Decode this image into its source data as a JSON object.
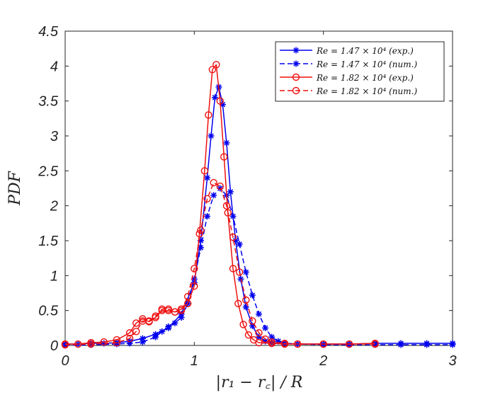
{
  "chart_data": {
    "type": "line",
    "title": "",
    "xlabel": "|r₁ − r꜀| / R",
    "ylabel": "PDF",
    "xlim": [
      0,
      3
    ],
    "ylim": [
      0,
      4.5
    ],
    "xticks": [
      0,
      1,
      2,
      3
    ],
    "xtick_labels": [
      "0",
      "1",
      "2",
      "3"
    ],
    "yticks": [
      0,
      0.5,
      1,
      1.5,
      2,
      2.5,
      3,
      3.5,
      4,
      4.5
    ],
    "ytick_labels": [
      "0",
      "0.5",
      "1",
      "1.5",
      "2",
      "2.5",
      "3",
      "3.5",
      "4",
      "4.5"
    ],
    "grid": false,
    "legend_position": "top-right",
    "series": [
      {
        "name": "Re = 1.47 × 10⁴ (exp.)",
        "color": "#0000ee",
        "linestyle": "solid",
        "marker": "asterisk",
        "x": [
          0.0,
          0.1,
          0.2,
          0.3,
          0.4,
          0.5,
          0.6,
          0.7,
          0.8,
          0.9,
          1.0,
          1.05,
          1.1,
          1.13,
          1.16,
          1.19,
          1.22,
          1.25,
          1.28,
          1.32,
          1.36,
          1.4,
          1.45,
          1.5,
          1.55,
          1.6,
          1.7,
          1.8,
          2.0,
          2.2,
          2.4,
          2.6,
          2.8,
          3.0
        ],
        "y": [
          0.02,
          0.02,
          0.03,
          0.03,
          0.04,
          0.06,
          0.1,
          0.16,
          0.25,
          0.45,
          0.9,
          1.5,
          2.4,
          3.0,
          3.55,
          3.7,
          3.45,
          2.9,
          2.2,
          1.5,
          0.95,
          0.55,
          0.28,
          0.12,
          0.06,
          0.04,
          0.03,
          0.02,
          0.02,
          0.02,
          0.03,
          0.03,
          0.03,
          0.03
        ]
      },
      {
        "name": "Re = 1.47 × 10⁴ (num.)",
        "color": "#0000ee",
        "linestyle": "dashed",
        "marker": "asterisk",
        "x": [
          0.0,
          0.2,
          0.4,
          0.5,
          0.6,
          0.7,
          0.75,
          0.8,
          0.85,
          0.9,
          0.95,
          1.0,
          1.05,
          1.1,
          1.15,
          1.2,
          1.25,
          1.3,
          1.35,
          1.4,
          1.45,
          1.5,
          1.55,
          1.6,
          1.65,
          1.7,
          1.8,
          2.0,
          2.2,
          2.4,
          2.6,
          2.8,
          3.0
        ],
        "y": [
          0.0,
          0.01,
          0.02,
          0.03,
          0.05,
          0.12,
          0.2,
          0.27,
          0.32,
          0.4,
          0.6,
          0.95,
          1.4,
          1.85,
          2.15,
          2.25,
          2.15,
          1.85,
          1.45,
          1.05,
          0.72,
          0.45,
          0.25,
          0.12,
          0.06,
          0.03,
          0.02,
          0.01,
          0.01,
          0.01,
          0.01,
          0.01,
          0.01
        ]
      },
      {
        "name": "Re = 1.82 × 10⁴ (exp.)",
        "color": "#ee1111",
        "linestyle": "solid",
        "marker": "circle",
        "x": [
          0.0,
          0.1,
          0.2,
          0.3,
          0.4,
          0.5,
          0.55,
          0.6,
          0.65,
          0.7,
          0.75,
          0.8,
          0.85,
          0.9,
          0.95,
          1.0,
          1.04,
          1.08,
          1.11,
          1.14,
          1.17,
          1.2,
          1.23,
          1.26,
          1.3,
          1.34,
          1.38,
          1.42,
          1.46,
          1.5,
          1.6,
          1.7,
          1.8,
          2.0,
          2.2,
          2.4
        ],
        "y": [
          0.02,
          0.02,
          0.04,
          0.05,
          0.08,
          0.18,
          0.32,
          0.38,
          0.34,
          0.4,
          0.5,
          0.5,
          0.48,
          0.52,
          0.6,
          0.85,
          1.6,
          2.5,
          3.3,
          3.95,
          4.02,
          3.5,
          2.7,
          1.9,
          1.1,
          0.6,
          0.3,
          0.15,
          0.08,
          0.04,
          0.03,
          0.02,
          0.02,
          0.02,
          0.02,
          0.03
        ]
      },
      {
        "name": "Re = 1.82 × 10⁴ (num.)",
        "color": "#ee1111",
        "linestyle": "dashed",
        "marker": "circle",
        "x": [
          0.0,
          0.2,
          0.4,
          0.5,
          0.55,
          0.6,
          0.65,
          0.7,
          0.75,
          0.8,
          0.85,
          0.9,
          0.95,
          1.0,
          1.05,
          1.1,
          1.15,
          1.2,
          1.25,
          1.3,
          1.35,
          1.4,
          1.45,
          1.5,
          1.55,
          1.6,
          1.7,
          1.8,
          2.0,
          2.2,
          2.4
        ],
        "y": [
          0.01,
          0.02,
          0.04,
          0.1,
          0.2,
          0.35,
          0.35,
          0.42,
          0.52,
          0.52,
          0.48,
          0.5,
          0.7,
          1.1,
          1.65,
          2.1,
          2.33,
          2.28,
          2.0,
          1.55,
          1.05,
          0.65,
          0.35,
          0.18,
          0.09,
          0.05,
          0.03,
          0.02,
          0.02,
          0.02,
          0.02
        ]
      }
    ]
  }
}
